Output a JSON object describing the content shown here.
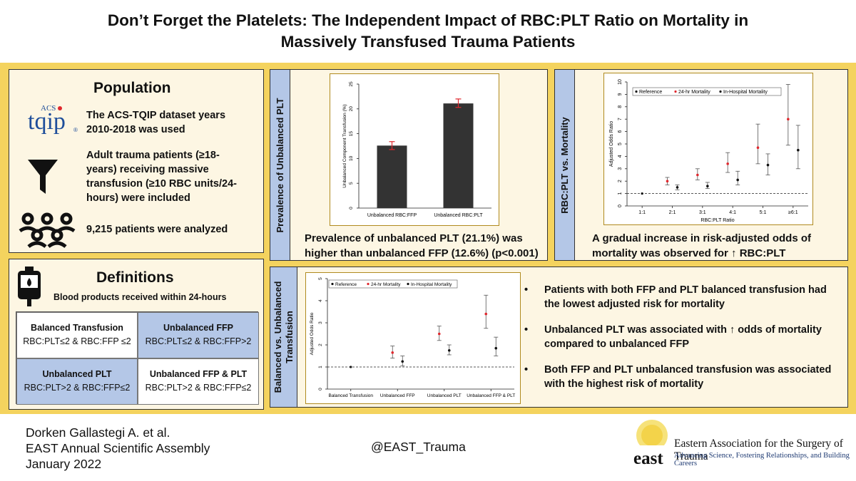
{
  "header": {
    "title_line1": "Don’t Forget the Platelets: The Independent Impact of RBC:PLT Ratio on Mortality in",
    "title_line2": "Massively Transfused Trauma Patients"
  },
  "population": {
    "title": "Population",
    "logo_acs": "ACS",
    "logo_tqip": "tqip",
    "logo_reg": "®",
    "item1": [
      "The ACS-TQIP dataset years",
      "2010-2018 was used"
    ],
    "item2": [
      "Adult trauma patients (≥18-",
      "years) receiving massive",
      "transfusion (≥10 RBC units/24-",
      "hours) were included"
    ],
    "item3": "9,215 patients were analyzed"
  },
  "definitions": {
    "title": "Definitions",
    "subtitle": "Blood products received within 24-hours",
    "cells": [
      {
        "name": "Balanced Transfusion",
        "rule": "RBC:PLT≤2 & RBC:FFP ≤2"
      },
      {
        "name": "Unbalanced FFP",
        "rule": "RBC:PLT≤2 & RBC:FFP>2"
      },
      {
        "name": "Unbalanced PLT",
        "rule": "RBC:PLT>2 & RBC:FFP≤2"
      },
      {
        "name": "Unbalanced FFP & PLT",
        "rule": "RBC:PLT>2 & RBC:FFP≤2"
      }
    ]
  },
  "prevalence": {
    "tab": "Prevalence of Unbalanced PLT",
    "caption1": "Prevalence of unbalanced PLT (21.1%) was",
    "caption2": "higher than unbalanced FFP (12.6%) (p<0.001)"
  },
  "ratio": {
    "tab": "RBC:PLT vs. Mortality",
    "caption1": "A gradual increase in risk-adjusted odds of",
    "caption2": "mortality was observed for ↑ RBC:PLT"
  },
  "balance": {
    "tab_line1": "Balanced vs. Unbalanced",
    "tab_line2": "Transfusion",
    "bullets": [
      "Patients with both FFP and PLT balanced transfusion had the lowest adjusted risk for mortality",
      "Unbalanced PLT was associated with ↑ odds of mortality compared to unbalanced FFP",
      "Both FFP and PLT unbalanced transfusion was associated with the highest risk of mortality"
    ]
  },
  "footer": {
    "author": "Dorken Gallastegi A. et al.",
    "meeting": "EAST Annual Scientific Assembly",
    "date": "January 2022",
    "handle": "@EAST_Trauma",
    "org": "Eastern Association for the Surgery of Trauma",
    "tagline": "Advancing Science, Fostering Relationships, and Building Careers",
    "logo_word": "east"
  },
  "colors": {
    "band": "#f4d35e",
    "panel": "#fdf6e3",
    "tab": "#b4c7e7",
    "bar": "#333333",
    "hosp24": "#e0282e",
    "inhosp": "#111111"
  },
  "chart_data": [
    {
      "type": "bar",
      "categories": [
        "Unbalanced RBC:FFP",
        "Unbalanced RBC:PLT"
      ],
      "values": [
        12.6,
        21.1
      ],
      "errors_low": [
        11.8,
        20.3
      ],
      "errors_high": [
        13.4,
        22.0
      ],
      "ylabel": "Unbalanced Component Transfusion (%)",
      "ylim": [
        0,
        25
      ],
      "yticks": [
        0,
        5,
        10,
        15,
        20,
        25
      ]
    },
    {
      "type": "scatter",
      "categories": [
        "1:1",
        "2:1",
        "3:1",
        "4:1",
        "5:1",
        "≥6:1"
      ],
      "xlabel": "RBC:PLT Ratio",
      "ylabel": "Adjusted Odds Ratio",
      "ylim": [
        0,
        10
      ],
      "yticks": [
        0,
        1,
        2,
        3,
        4,
        5,
        6,
        7,
        8,
        9,
        10
      ],
      "reference_line": 1,
      "legend": [
        "Reference",
        "24-hr Mortality",
        "In-Hospital Mortality"
      ],
      "reference": {
        "category": "1:1",
        "value": 1.0
      },
      "series": [
        {
          "name": "24-hr Mortality",
          "values": [
            null,
            2.0,
            2.5,
            3.4,
            4.7,
            7.0
          ],
          "low": [
            null,
            1.7,
            2.1,
            2.7,
            3.4,
            4.9
          ],
          "high": [
            null,
            2.3,
            3.0,
            4.3,
            6.6,
            9.8
          ]
        },
        {
          "name": "In-Hospital Mortality",
          "values": [
            null,
            1.5,
            1.6,
            2.1,
            3.3,
            4.5
          ],
          "low": [
            null,
            1.3,
            1.4,
            1.7,
            2.5,
            3.0
          ],
          "high": [
            null,
            1.7,
            1.9,
            2.8,
            4.2,
            6.5
          ]
        }
      ]
    },
    {
      "type": "scatter",
      "categories": [
        "Balanced Transfusion",
        "Unbalanced FFP",
        "Unbalanced PLT",
        "Unbalanced FFP & PLT"
      ],
      "ylabel": "Adjusted Odds Ratio",
      "ylim": [
        0,
        5
      ],
      "yticks": [
        0,
        1,
        2,
        3,
        4,
        5
      ],
      "reference_line": 1,
      "legend": [
        "Reference",
        "24-hr Mortality",
        "In-Hospital Mortality"
      ],
      "reference": {
        "category": "Balanced Transfusion",
        "value": 1.0
      },
      "series": [
        {
          "name": "24-hr Mortality",
          "values": [
            null,
            1.65,
            2.5,
            3.4
          ],
          "low": [
            null,
            1.4,
            2.2,
            2.75
          ],
          "high": [
            null,
            1.95,
            2.85,
            4.25
          ]
        },
        {
          "name": "In-Hospital Mortality",
          "values": [
            null,
            1.25,
            1.75,
            1.85
          ],
          "low": [
            null,
            1.05,
            1.55,
            1.5
          ],
          "high": [
            null,
            1.5,
            2.0,
            2.35
          ]
        }
      ]
    }
  ]
}
